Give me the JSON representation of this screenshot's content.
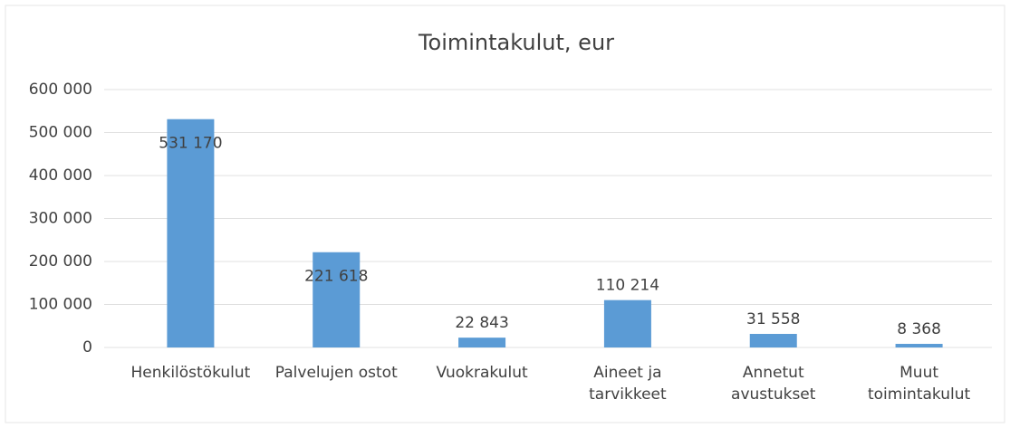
{
  "chart_data": {
    "type": "bar",
    "title": "Toimintakulut, eur",
    "categories": [
      "Henkilöstökulut",
      "Palvelujen ostot",
      "Vuokrakulut",
      "Aineet ja tarvikkeet",
      "Annetut avustukset",
      "Muut toimintakulut"
    ],
    "values": [
      531170,
      221618,
      22843,
      110214,
      31558,
      8368
    ],
    "value_labels": [
      "531 170",
      "221 618",
      "22 843",
      "110 214",
      "31 558",
      "8 368"
    ],
    "color": "#5b9bd5",
    "ylim": [
      0,
      600000
    ],
    "yticks": [
      0,
      {
        "value": 100000,
        "label": "100 000"
      },
      {
        "value": 200000,
        "label": "200 000"
      },
      {
        "value": 300000,
        "label": "300 000"
      },
      {
        "value": 400000,
        "label": "400 000"
      },
      {
        "value": 500000,
        "label": "500 000"
      },
      {
        "value": 600000,
        "label": "600 000"
      }
    ],
    "grid": true
  }
}
